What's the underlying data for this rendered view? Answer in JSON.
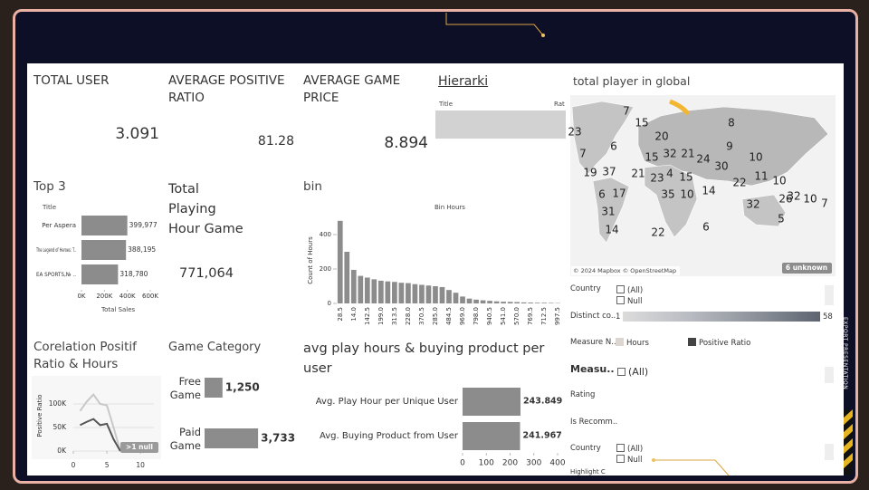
{
  "kpis": [
    {
      "title": "TOTAL USER",
      "value": 3.091
    },
    {
      "title": "AVERAGE POSITIVE RATIO",
      "value": 81.28
    },
    {
      "title": "AVERAGE GAME PRICE",
      "value": 8.894
    }
  ],
  "hierarchy": {
    "title": "Hierarki",
    "columns": [
      "Title",
      "Rat"
    ]
  },
  "map": {
    "title": "total player in global",
    "labels": [
      7,
      15,
      23,
      8,
      20,
      7,
      6,
      15,
      32,
      21,
      24,
      9,
      10,
      19,
      37,
      21,
      23,
      4,
      15,
      30,
      11,
      10,
      22,
      6,
      17,
      35,
      10,
      14,
      26,
      32,
      10,
      7,
      32,
      31,
      5,
      14,
      22,
      6
    ],
    "attribution": "© 2024 Mapbox © OpenStreetMap",
    "unknown": "6 unknown"
  },
  "top3": {
    "title": "Top 3",
    "column": "Title",
    "axis_title": "Total Sales",
    "categories": [
      "Per Aspera",
      "The Legend of Heroes: T..",
      "EA SPORTS,№ .."
    ],
    "values": [
      399977,
      388195,
      318780
    ],
    "value_labels": [
      "399,977",
      "388,195",
      "318,780"
    ],
    "xlim": [
      0,
      600000
    ],
    "xticks": [
      {
        "value": 0,
        "label": "0K"
      },
      {
        "value": 200000,
        "label": "200K"
      },
      {
        "value": 400000,
        "label": "400K"
      },
      {
        "value": 600000,
        "label": "600K"
      }
    ],
    "color": "#8c8c8c"
  },
  "playing_hours": {
    "title": "Total Playing Hour Game",
    "value": 771064,
    "value_label": "771,064"
  },
  "bin": {
    "type": "bar",
    "title": "bin",
    "subtitle": "Bin Hours",
    "y_label": "Count of Hours",
    "categories": [
      "28.5",
      null,
      "14.0",
      null,
      "142.5",
      null,
      "199.0",
      null,
      "313.5",
      null,
      "228.0",
      null,
      "370.5",
      null,
      "285.0",
      null,
      "484.5",
      null,
      "969.0",
      null,
      "798.0",
      null,
      "940.5",
      null,
      "541.0",
      null,
      "570.0",
      null,
      "769.5",
      null,
      "712.5",
      null,
      "997.5"
    ],
    "values": [
      480,
      300,
      195,
      160,
      150,
      140,
      132,
      128,
      125,
      120,
      118,
      112,
      108,
      104,
      100,
      95,
      78,
      62,
      40,
      28,
      22,
      18,
      15,
      12,
      10,
      9,
      8,
      6,
      5,
      4,
      4,
      3,
      2
    ],
    "ylim": [
      0,
      500
    ],
    "yticks": [
      0,
      200,
      400
    ],
    "color": "#8c8c8c"
  },
  "correlation": {
    "type": "line",
    "title": "Corelation Positif Ratio & Hours",
    "y_label": "Positive Ratio",
    "note": ">1 null",
    "x": [
      1,
      2,
      3,
      4,
      5,
      6,
      7
    ],
    "series": [
      {
        "color": "#c8c8c8",
        "values": [
          85000,
          105000,
          120000,
          100000,
          97000,
          50000,
          0
        ]
      },
      {
        "color": "#555555",
        "values": [
          55000,
          62000,
          68000,
          55000,
          58000,
          25000,
          0
        ]
      }
    ],
    "xlim": [
      0,
      12
    ],
    "xticks": [
      0,
      5,
      10
    ],
    "ylim": [
      0,
      150000
    ],
    "yticks": [
      {
        "value": 0,
        "label": "0K"
      },
      {
        "value": 50000,
        "label": "50K"
      },
      {
        "value": 100000,
        "label": "100K"
      }
    ]
  },
  "game_category": {
    "title": "Game Category",
    "categories": [
      "Free Game",
      "Paid Game"
    ],
    "values": [
      1250,
      3733
    ],
    "value_labels": [
      "1,250",
      "3,733"
    ],
    "xlim": [
      0,
      6000
    ],
    "color": "#8c8c8c"
  },
  "avg_chart": {
    "title": "avg play hours & buying product per user",
    "categories": [
      "Avg. Play Hour per Unique User",
      "Avg.  Buying Product from User"
    ],
    "values": [
      243.849,
      241.967
    ],
    "xlim": [
      0,
      400
    ],
    "xticks": [
      0,
      100,
      200,
      300,
      400
    ],
    "color": "#8c8c8c"
  },
  "filters": {
    "country": {
      "label": "Country",
      "options": [
        "(All)",
        "Null"
      ]
    },
    "distinct": {
      "label": "Distinct co..",
      "min": 1,
      "max": 58
    },
    "measure_names": {
      "label": "Measure N..",
      "items": [
        "Hours",
        "Positive Ratio"
      ]
    },
    "measure": {
      "label": "Measu..",
      "option": "(All)"
    },
    "rating": "Rating",
    "recommended": "Is Recomm..",
    "country2": {
      "label": "Country",
      "options": [
        "(All)",
        "Null"
      ]
    },
    "highlight": "Highlight C"
  },
  "side_label": "EXPORT PRESENTATION"
}
